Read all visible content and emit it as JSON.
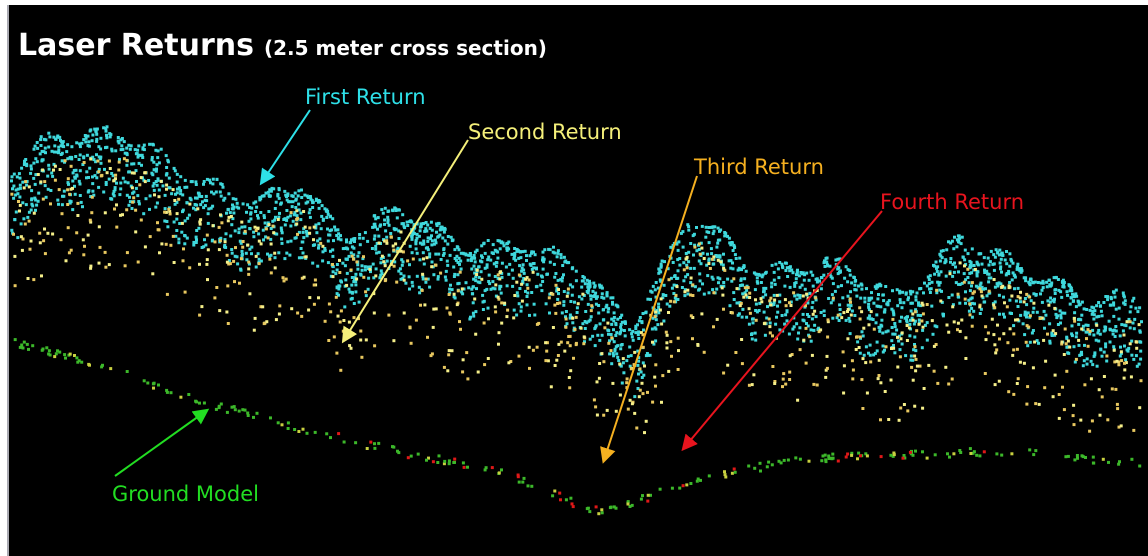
{
  "title": "Laser Returns",
  "subtitle": "(2.5 meter cross section)",
  "labels": {
    "first": "First Return",
    "second": "Second Return",
    "third": "Third Return",
    "fourth": "Fourth Return",
    "ground": "Ground Model"
  }
}
